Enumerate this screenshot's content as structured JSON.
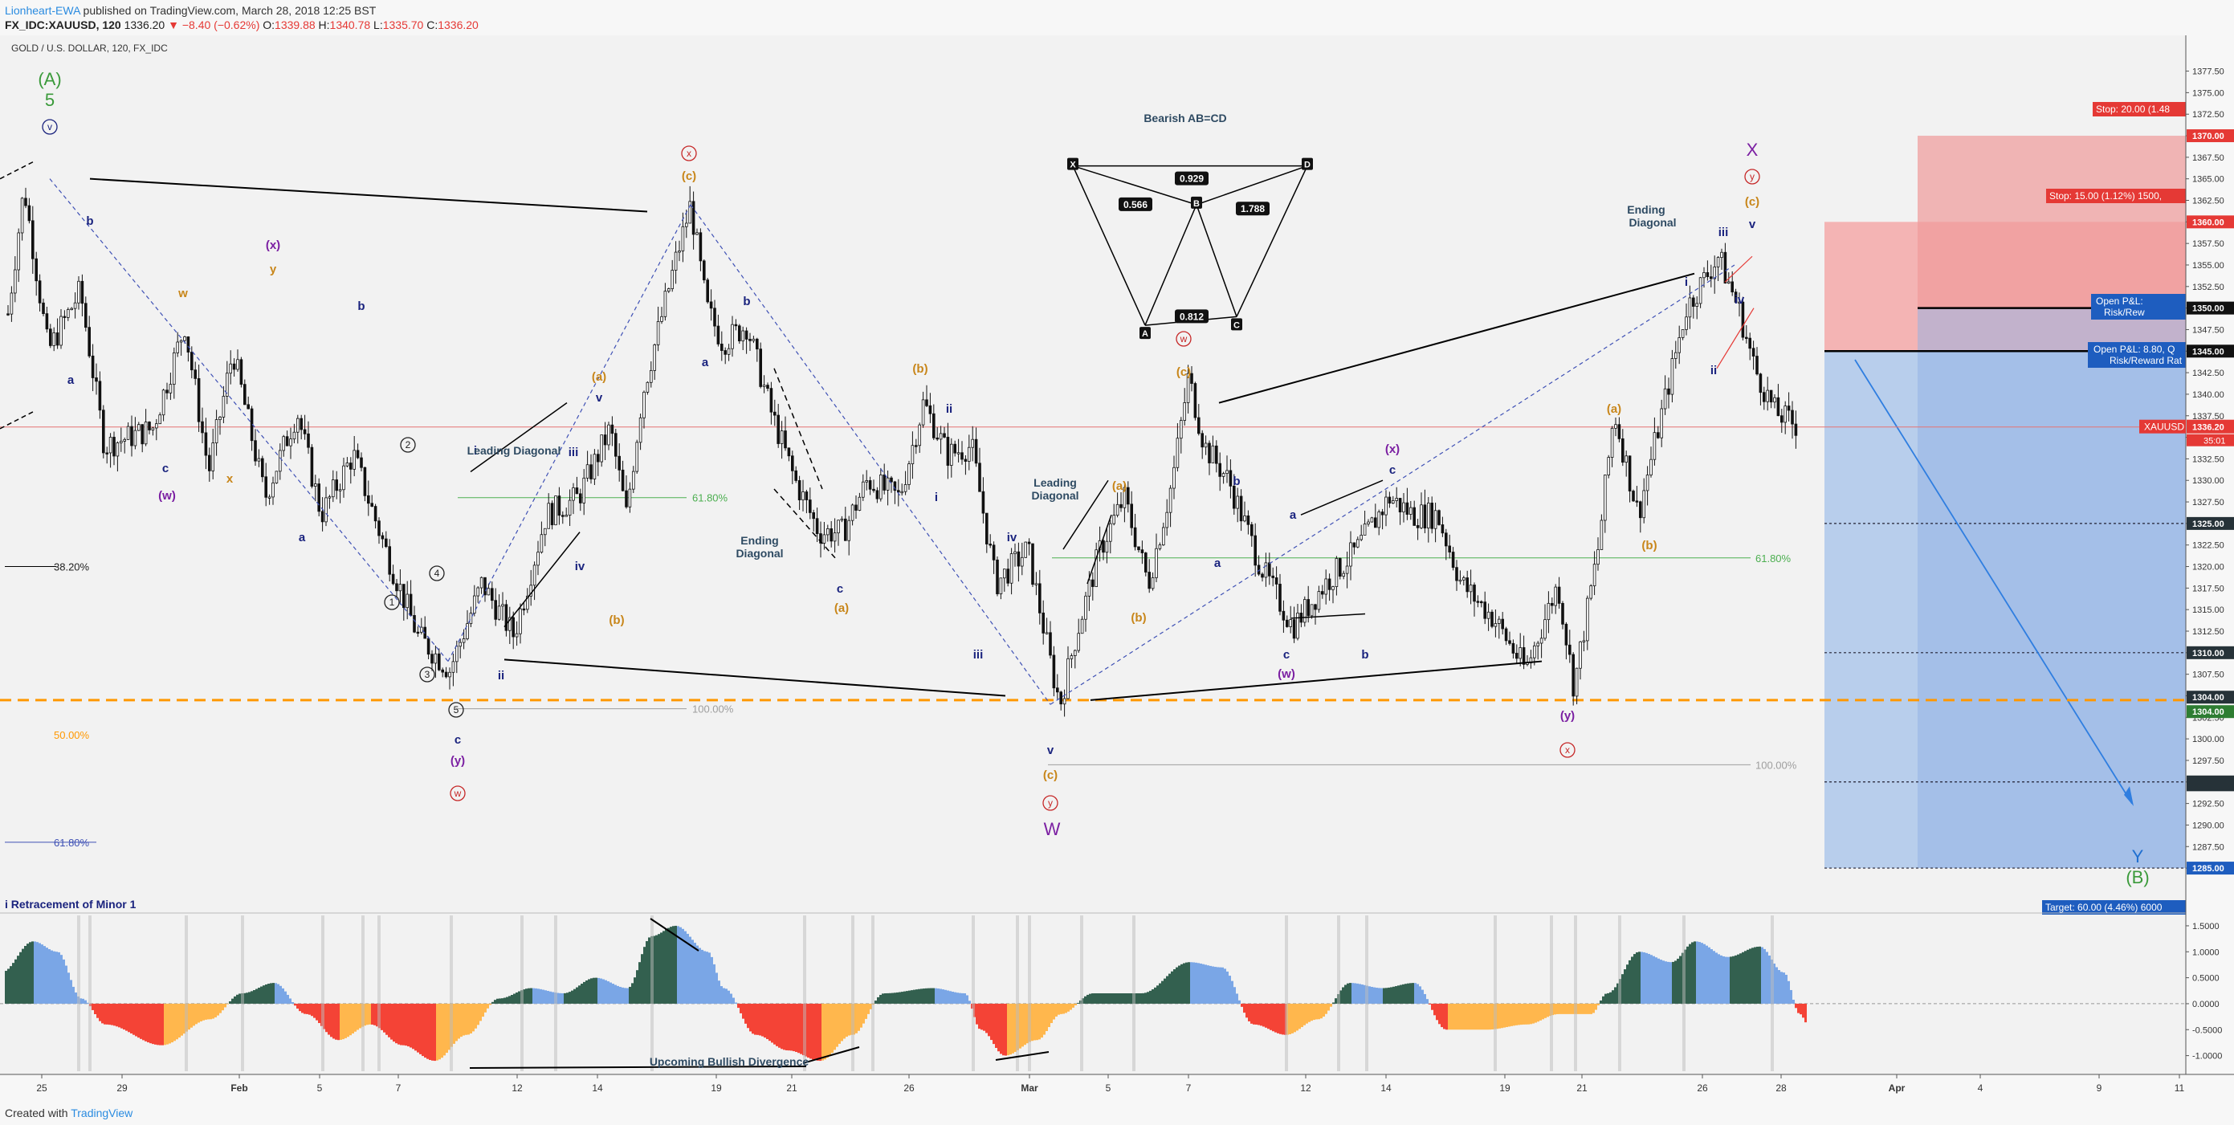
{
  "header": {
    "author": "Lionheart-EWA",
    "published": "published on TradingView.com, March 28, 2018 12:25 BST",
    "symbol": "FX_IDC:XAUUSD, 120",
    "price": "1336.20",
    "change": "−8.40 (−0.62%)",
    "ohlc_o_label": "O:",
    "ohlc_o": "1339.88",
    "ohlc_h_label": "H:",
    "ohlc_h": "1340.78",
    "ohlc_l_label": "L:",
    "ohlc_l": "1335.70",
    "ohlc_c_label": "C:",
    "ohlc_c": "1336.20"
  },
  "footer": {
    "created_with": "Created with",
    "brand": "TradingView"
  },
  "chart_data": {
    "type": "candlestick",
    "title": "GOLD / U.S. DOLLAR, 120, FX_IDC",
    "ylim": [
      1281,
      1381
    ],
    "y_ticks": [
      1377.5,
      1375.0,
      1372.5,
      1370.0,
      1367.5,
      1365.0,
      1362.5,
      1360.0,
      1357.5,
      1355.0,
      1352.5,
      1350.0,
      1347.5,
      1345.0,
      1342.5,
      1340.0,
      1337.5,
      1335.0,
      1332.5,
      1330.0,
      1327.5,
      1325.0,
      1322.5,
      1320.0,
      1317.5,
      1315.0,
      1312.5,
      1310.0,
      1307.5,
      1305.0,
      1302.5,
      1300.0,
      1297.5,
      1295.0,
      1292.5,
      1290.0,
      1287.5,
      1285.0
    ],
    "x_ticks": [
      "25",
      "29",
      "Feb",
      "5",
      "7",
      "12",
      "14",
      "19",
      "21",
      "26",
      "Mar",
      "5",
      "7",
      "12",
      "14",
      "19",
      "21",
      "26",
      "28",
      "Apr",
      "4",
      "9",
      "11"
    ],
    "price_path": [
      [
        0,
        1342
      ],
      [
        30,
        1364
      ],
      [
        60,
        1345
      ],
      [
        100,
        1352
      ],
      [
        130,
        1334
      ],
      [
        190,
        1336
      ],
      [
        230,
        1348
      ],
      [
        260,
        1331
      ],
      [
        290,
        1345
      ],
      [
        330,
        1328
      ],
      [
        370,
        1338
      ],
      [
        400,
        1326
      ],
      [
        440,
        1333
      ],
      [
        480,
        1322
      ],
      [
        520,
        1312
      ],
      [
        560,
        1308
      ],
      [
        600,
        1318
      ],
      [
        640,
        1312
      ],
      [
        680,
        1326
      ],
      [
        720,
        1328
      ],
      [
        760,
        1336
      ],
      [
        780,
        1326
      ],
      [
        800,
        1340
      ],
      [
        840,
        1355
      ],
      [
        860,
        1362
      ],
      [
        880,
        1350
      ],
      [
        900,
        1346
      ],
      [
        930,
        1348
      ],
      [
        960,
        1338
      ],
      [
        990,
        1330
      ],
      [
        1020,
        1324
      ],
      [
        1050,
        1324
      ],
      [
        1080,
        1330
      ],
      [
        1120,
        1328
      ],
      [
        1150,
        1339
      ],
      [
        1180,
        1333
      ],
      [
        1210,
        1334
      ],
      [
        1240,
        1318
      ],
      [
        1280,
        1322
      ],
      [
        1310,
        1308
      ],
      [
        1320,
        1304
      ],
      [
        1340,
        1312
      ],
      [
        1370,
        1322
      ],
      [
        1400,
        1328
      ],
      [
        1430,
        1318
      ],
      [
        1460,
        1330
      ],
      [
        1480,
        1342
      ],
      [
        1500,
        1334
      ],
      [
        1530,
        1330
      ],
      [
        1570,
        1320
      ],
      [
        1610,
        1313
      ],
      [
        1650,
        1318
      ],
      [
        1690,
        1322
      ],
      [
        1730,
        1328
      ],
      [
        1760,
        1326
      ],
      [
        1790,
        1326
      ],
      [
        1820,
        1318
      ],
      [
        1860,
        1314
      ],
      [
        1900,
        1308
      ],
      [
        1940,
        1318
      ],
      [
        1960,
        1306
      ],
      [
        1990,
        1322
      ],
      [
        2010,
        1338
      ],
      [
        2040,
        1326
      ],
      [
        2070,
        1338
      ],
      [
        2100,
        1350
      ],
      [
        2140,
        1356
      ],
      [
        2165,
        1350
      ],
      [
        2185,
        1343
      ],
      [
        2210,
        1338
      ],
      [
        2240,
        1336.2
      ]
    ],
    "horizontal_levels": [
      {
        "label": "38.20%",
        "value": 1320,
        "color": "#000000"
      },
      {
        "label": "50.00%",
        "value": 1300.5,
        "color": "#ff9800"
      },
      {
        "label": "61.80%",
        "value": 1288,
        "color": "#3f51b5"
      },
      {
        "label": "61.80%",
        "value": 1328,
        "color": "#4caf50"
      },
      {
        "label": "61.80%",
        "value": 1321,
        "color": "#4caf50"
      },
      {
        "label": "100.00%",
        "value": 1303.5,
        "color": "#9e9e9e"
      },
      {
        "label": "100.00%",
        "value": 1297,
        "color": "#9e9e9e"
      }
    ],
    "fib_caption": "i Retracement of Minor 1",
    "current_price_label": "XAUUSD",
    "current_price": "1336.20",
    "countdown": "35:01",
    "position": {
      "entry": 1345.0,
      "entry2": 1350.0,
      "stop1": 1360.0,
      "stop2": 1370.0,
      "target": 1285.0,
      "stop1_label": "Stop: 15.00 (1.12%) 1500,",
      "stop2_label": "Stop: 20.00 (1.48",
      "pnl1": "Open P&L: 8.80, Q",
      "rr1": "Risk/Reward Rat",
      "pnl2": "Open P&L:",
      "rr2": "Risk/Rew",
      "target_label": "Target: 60.00 (4.46%) 6000",
      "levels": [
        "1370.00",
        "1360.00",
        "1350.00",
        "1345.00",
        "1325.00",
        "1310.00",
        "1304.00",
        "1304.00",
        "1295.00",
        "1285.00"
      ]
    },
    "annotations": {
      "A": "(A)",
      "A5": "5",
      "X": "X",
      "W": "W",
      "Y": "Y",
      "B": "(B)",
      "bearish": "Bearish AB=CD",
      "abcd_ratios": [
        "0.929",
        "0.566",
        "1.788",
        "0.812"
      ],
      "abcd_points": [
        "X",
        "D",
        "B",
        "A",
        "C"
      ],
      "diagrams": [
        "Leading Diagonal",
        "Ending Diagonal",
        "Leading Diagonal",
        "Ending Diagonal"
      ],
      "upcoming": "Upcoming Bullish Divergence"
    },
    "wave_labels": [
      "v",
      "b",
      "a",
      "c",
      "(w)",
      "w",
      "y",
      "(x)",
      "x",
      "a",
      "b",
      "c",
      "(a)",
      "(b)",
      "a",
      "b",
      "c",
      "(c)",
      "(b)",
      "ii",
      "i",
      "iii",
      "iv",
      "v",
      "i",
      "ii",
      "iii",
      "iv",
      "(a)",
      "(b)",
      "(c)",
      "(y)",
      "(x)",
      "x",
      "w",
      "y",
      "2",
      "1",
      "3",
      "4",
      "5"
    ],
    "oscillator": {
      "ylim": [
        -1.3,
        1.7
      ],
      "y_ticks": [
        "1.5000",
        "1.0000",
        "0.5000",
        "0.0000",
        "-0.5000",
        "-1.0000"
      ]
    }
  }
}
